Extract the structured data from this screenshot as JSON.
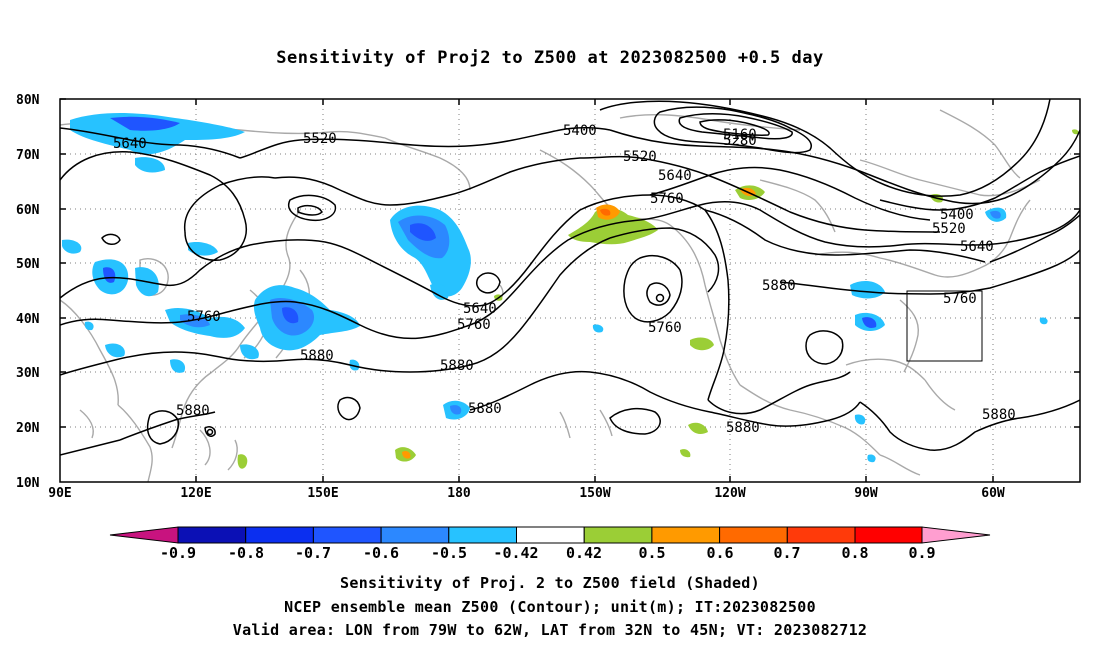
{
  "title": "Sensitivity of Proj2 to Z500 at 2023082500 +0.5 day",
  "lat_labels": [
    "80N",
    "70N",
    "60N",
    "50N",
    "40N",
    "30N",
    "20N",
    "10N"
  ],
  "lon_labels": [
    "90E",
    "120E",
    "150E",
    "180",
    "150W",
    "120W",
    "90W",
    "60W"
  ],
  "contour_labels": [
    {
      "text": "5640"
    },
    {
      "text": "5520"
    },
    {
      "text": "5400"
    },
    {
      "text": "5160"
    },
    {
      "text": "5280"
    },
    {
      "text": "5520"
    },
    {
      "text": "5640"
    },
    {
      "text": "5760"
    },
    {
      "text": "5400"
    },
    {
      "text": "5520"
    },
    {
      "text": "5640"
    },
    {
      "text": "5760"
    },
    {
      "text": "5880"
    },
    {
      "text": "5640"
    },
    {
      "text": "5760"
    },
    {
      "text": "5760"
    },
    {
      "text": "5760"
    },
    {
      "text": "5880"
    },
    {
      "text": "5880"
    },
    {
      "text": "5880"
    },
    {
      "text": "5880"
    },
    {
      "text": "5880"
    },
    {
      "text": "5880"
    }
  ],
  "colorbar": {
    "labels": [
      "-0.9",
      "-0.8",
      "-0.7",
      "-0.6",
      "-0.5",
      "-0.42",
      "0.42",
      "0.5",
      "0.6",
      "0.7",
      "0.8",
      "0.9"
    ],
    "colors": {
      "lt_-0.9": "#c8137f",
      "-0.9_-0.8": "#0b10b5",
      "-0.8_-0.7": "#0b2ff0",
      "-0.7_-0.6": "#1f55ff",
      "-0.6_-0.5": "#2c88ff",
      "-0.5_-0.42": "#27c2ff",
      "-0.42_0.42": "#ffffff",
      "0.42_0.5": "#9bce36",
      "0.5_0.6": "#ff9a00",
      "0.6_0.7": "#ff6a00",
      "0.7_0.8": "#ff3a0a",
      "0.8_0.9": "#ff0000",
      "gt_0.9": "#ff9ed0"
    }
  },
  "captions": {
    "line1": "Sensitivity of Proj. 2 to Z500 field (Shaded)",
    "line2": "NCEP ensemble mean Z500 (Contour); unit(m); IT:2023082500",
    "line3": "Valid area: LON from 79W to 62W, LAT from 32N to 45N; VT: 2023082712"
  },
  "valid_area": {
    "lon_from": "79W",
    "lon_to": "62W",
    "lat_from": "32N",
    "lat_to": "45N"
  }
}
